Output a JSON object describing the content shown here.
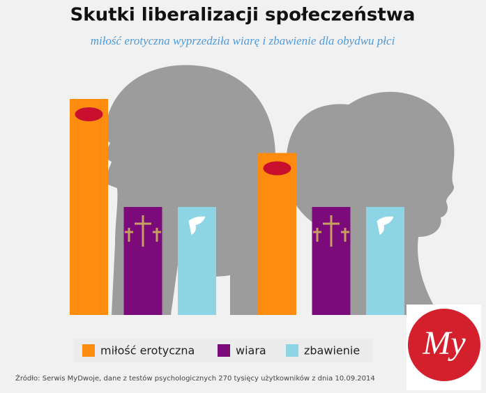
{
  "chart_data": {
    "type": "bar",
    "title": "Skutki liberalizacji społeczeństwa",
    "subtitle": "miłość erotyczna wyprzedziła wiarę i zbawienie dla obydwu płci",
    "categories": [
      null,
      null
    ],
    "series": [
      {
        "name": "miłość erotyczna",
        "color": "#ff8c0f",
        "values": [
          100,
          75
        ]
      },
      {
        "name": "wiara",
        "color": "#7b0a7b",
        "values": [
          50,
          50
        ]
      },
      {
        "name": "zbawienie",
        "color": "#8dd4e4",
        "values": [
          50,
          50
        ]
      }
    ],
    "ylim": [
      0,
      100
    ],
    "legend": "bottom",
    "source": "Źródło: Serwis MyDwoje, dane z testów psychologicznych 270 tysięcy użytkowników z dnia 10.09.2014",
    "logo": "My"
  }
}
